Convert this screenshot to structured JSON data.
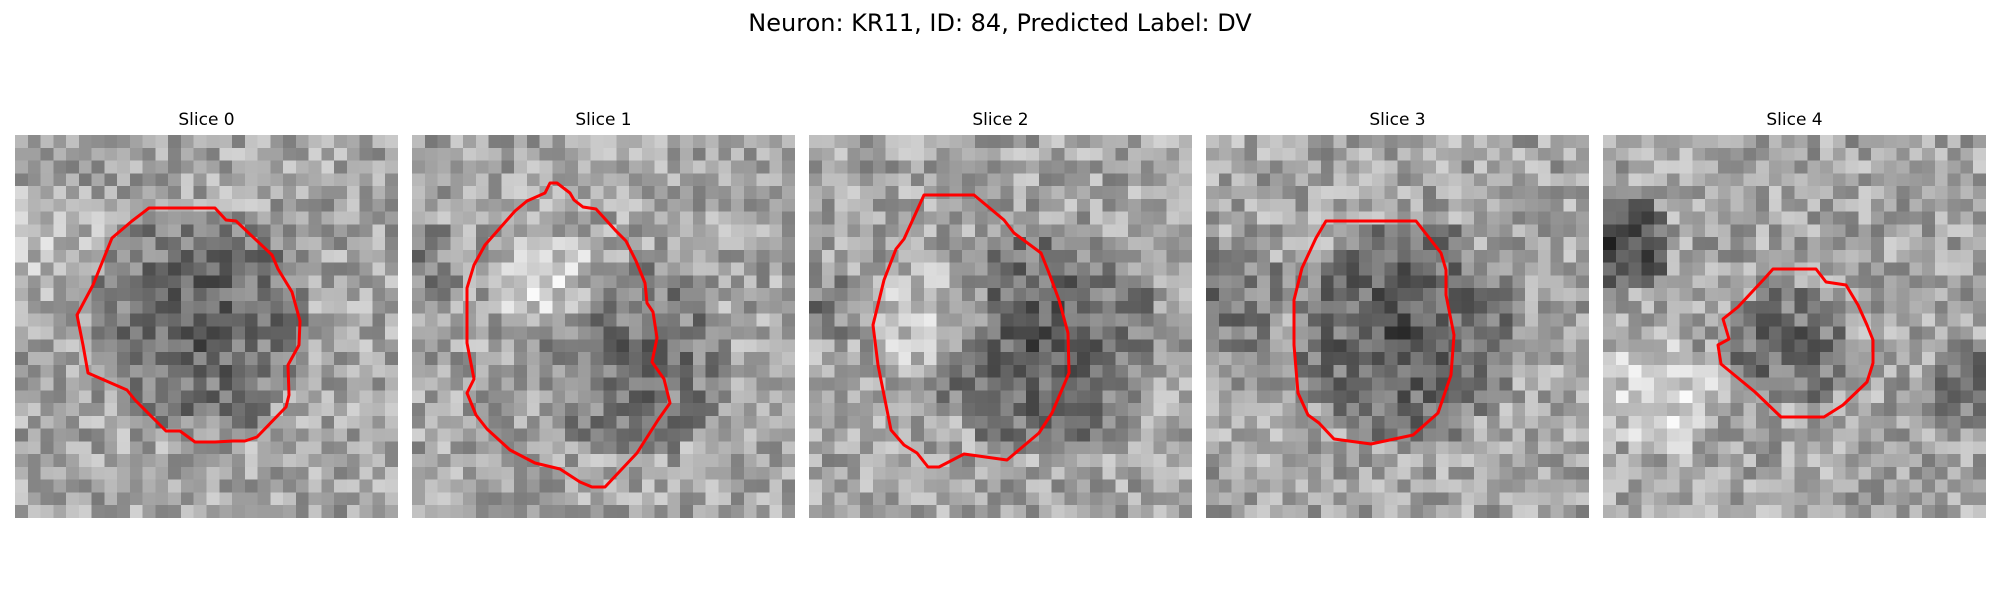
{
  "figure": {
    "title": "Neuron: KR11, ID: 84, Predicted Label: DV"
  },
  "colors": {
    "contour": "#ff0000"
  },
  "panels": [
    {
      "title": "Slice 0"
    },
    {
      "title": "Slice 1"
    },
    {
      "title": "Slice 2"
    },
    {
      "title": "Slice 3"
    },
    {
      "title": "Slice 4"
    }
  ]
}
